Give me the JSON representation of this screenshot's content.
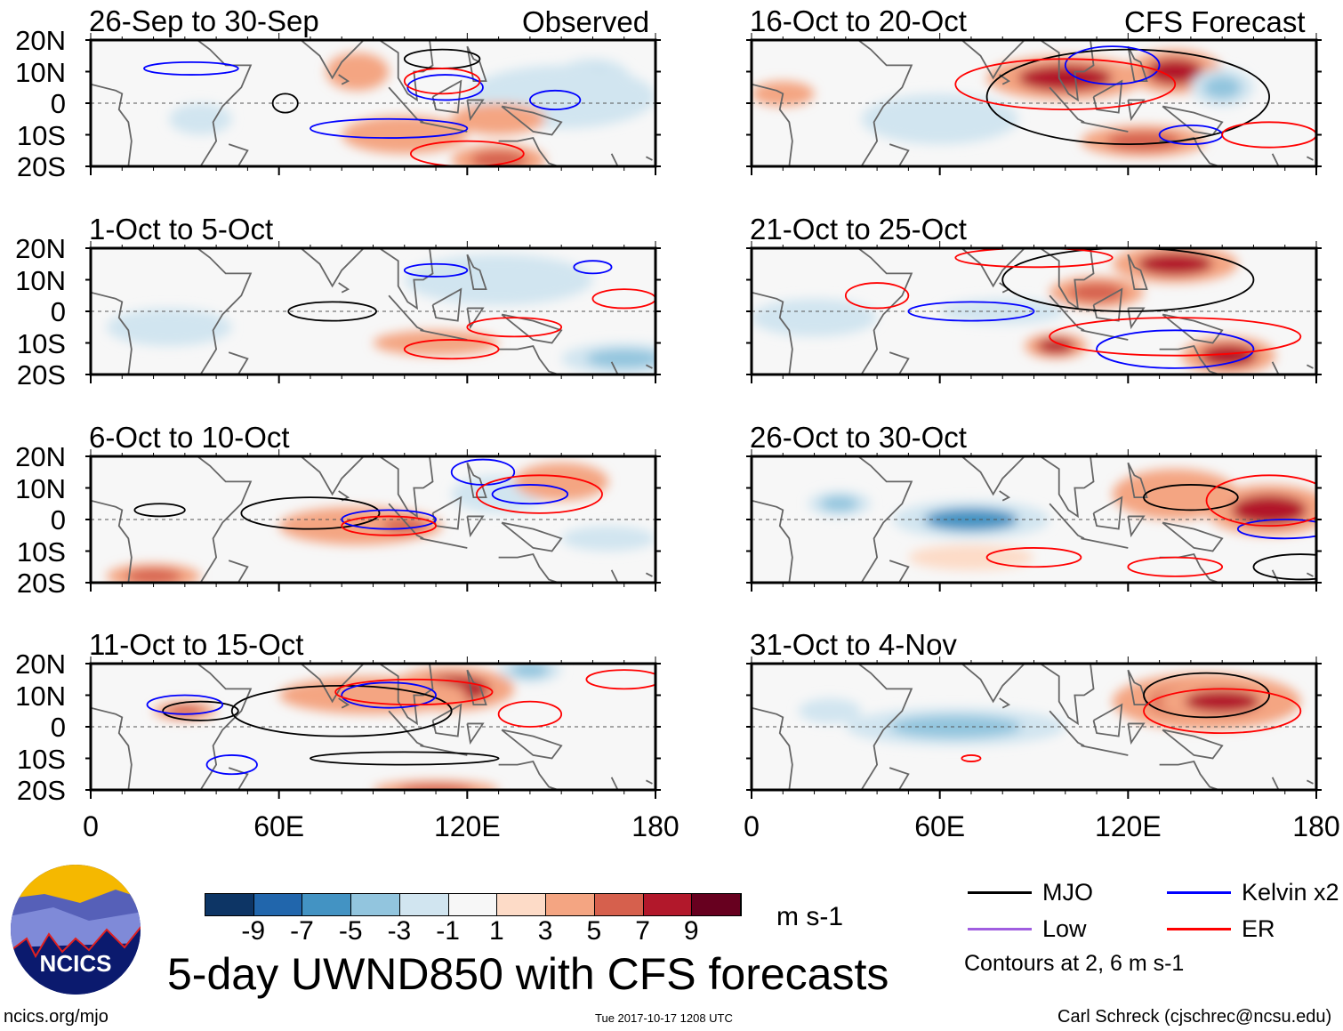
{
  "figure": {
    "title": "5-day UWND850 with CFS forecasts",
    "units": "m s-1",
    "website": "ncics.org/mjo",
    "timestamp": "Tue 2017-10-17 1208 UTC",
    "author": "Carl Schreck (cjschrec@ncsu.edu)",
    "logo_text": "NCICS",
    "left_column_label": "Observed",
    "right_column_label": "CFS Forecast",
    "contour_note": "Contours at 2, 6 m s-1"
  },
  "legend": [
    {
      "label": "MJO",
      "color": "#000000"
    },
    {
      "label": "Kelvin x2",
      "color": "#0000ff"
    },
    {
      "label": "Low",
      "color": "#a05ee0"
    },
    {
      "label": "ER",
      "color": "#ff0000"
    }
  ],
  "colorbar": {
    "labels": [
      "-9",
      "-7",
      "-5",
      "-3",
      "-1",
      "1",
      "3",
      "5",
      "7",
      "9"
    ],
    "colors": [
      "#0d3565",
      "#2166ac",
      "#4393c3",
      "#92c5de",
      "#d1e5f0",
      "#f7f7f7",
      "#fddbc7",
      "#f4a582",
      "#d6604d",
      "#b2182b",
      "#67001f"
    ]
  },
  "axes": {
    "lat_labels": [
      "20N",
      "10N",
      "0",
      "10S",
      "20S"
    ],
    "lon_labels": [
      "0",
      "60E",
      "120E",
      "180"
    ]
  },
  "chart_data": {
    "type": "heatmap",
    "variable": "850 hPa zonal wind anomaly",
    "xlim": [
      0,
      180
    ],
    "ylim": [
      -20,
      20
    ],
    "panels": [
      {
        "title": "26-Sep to 30-Sep",
        "column": "left",
        "anomalies": [
          [
            160,
            8,
            12,
            6,
            -5
          ],
          [
            150,
            2,
            30,
            10,
            -3
          ],
          [
            35,
            -5,
            10,
            5,
            -3
          ],
          [
            100,
            -10,
            20,
            6,
            3
          ],
          [
            130,
            -18,
            15,
            5,
            5
          ],
          [
            85,
            10,
            10,
            6,
            3
          ],
          [
            130,
            -5,
            15,
            5,
            3
          ]
        ],
        "contours": {
          "MJO": [
            [
              62,
              0,
              4,
              3
            ],
            [
              112,
              14,
              12,
              3
            ]
          ],
          "Kelvin": [
            [
              32,
              11,
              15,
              2
            ],
            [
              113,
              5,
              12,
              4
            ],
            [
              148,
              1,
              8,
              3
            ],
            [
              95,
              -8,
              25,
              3
            ]
          ],
          "ER": [
            [
              112,
              7,
              12,
              4
            ],
            [
              120,
              -16,
              18,
              4
            ]
          ]
        }
      },
      {
        "title": "1-Oct to 5-Oct",
        "column": "left",
        "anomalies": [
          [
            170,
            -15,
            20,
            5,
            -5
          ],
          [
            110,
            -10,
            20,
            4,
            3
          ],
          [
            25,
            -5,
            20,
            6,
            -3
          ],
          [
            130,
            10,
            30,
            8,
            -2
          ]
        ],
        "contours": {
          "MJO": [
            [
              77,
              0,
              14,
              3
            ]
          ],
          "Kelvin": [
            [
              110,
              13,
              10,
              2
            ],
            [
              160,
              14,
              6,
              2
            ]
          ],
          "ER": [
            [
              170,
              4,
              10,
              3
            ],
            [
              115,
              -12,
              15,
              3
            ],
            [
              135,
              -5,
              15,
              3
            ]
          ]
        }
      },
      {
        "title": "6-Oct to 10-Oct",
        "column": "left",
        "anomalies": [
          [
            85,
            -2,
            25,
            6,
            3
          ],
          [
            100,
            -2,
            12,
            4,
            5
          ],
          [
            130,
            8,
            15,
            6,
            -3
          ],
          [
            20,
            -18,
            15,
            4,
            5
          ],
          [
            150,
            12,
            15,
            6,
            3
          ],
          [
            165,
            -6,
            15,
            4,
            -3
          ]
        ],
        "contours": {
          "MJO": [
            [
              70,
              2,
              22,
              5
            ],
            [
              22,
              3,
              8,
              2
            ]
          ],
          "Kelvin": [
            [
              95,
              0,
              15,
              3
            ],
            [
              125,
              15,
              10,
              4
            ],
            [
              140,
              8,
              12,
              3
            ]
          ],
          "ER": [
            [
              143,
              8,
              20,
              6
            ],
            [
              95,
              -2,
              15,
              3
            ]
          ]
        }
      },
      {
        "title": "11-Oct to 15-Oct",
        "column": "left",
        "anomalies": [
          [
            115,
            12,
            20,
            7,
            7
          ],
          [
            90,
            10,
            30,
            6,
            3
          ],
          [
            30,
            5,
            10,
            3,
            5
          ],
          [
            140,
            18,
            10,
            4,
            -5
          ],
          [
            110,
            -20,
            20,
            3,
            5
          ]
        ],
        "contours": {
          "MJO": [
            [
              80,
              5,
              35,
              8
            ],
            [
              35,
              5,
              12,
              3
            ],
            [
              100,
              -10,
              30,
              2
            ]
          ],
          "Kelvin": [
            [
              95,
              10,
              15,
              4
            ],
            [
              30,
              7,
              12,
              3
            ],
            [
              45,
              -12,
              8,
              3
            ]
          ],
          "ER": [
            [
              103,
              11,
              25,
              4
            ],
            [
              170,
              15,
              12,
              3
            ],
            [
              140,
              4,
              10,
              4
            ]
          ]
        }
      },
      {
        "title": "16-Oct to 20-Oct",
        "column": "right",
        "anomalies": [
          [
            100,
            8,
            25,
            7,
            7
          ],
          [
            135,
            10,
            15,
            7,
            7
          ],
          [
            125,
            -12,
            20,
            5,
            5
          ],
          [
            150,
            5,
            10,
            6,
            -5
          ],
          [
            10,
            3,
            10,
            4,
            3
          ],
          [
            60,
            -5,
            25,
            8,
            -2
          ]
        ],
        "contours": {
          "MJO": [
            [
              120,
              2,
              45,
              15
            ]
          ],
          "Kelvin": [
            [
              115,
              12,
              15,
              6
            ],
            [
              140,
              -10,
              10,
              3
            ]
          ],
          "ER": [
            [
              100,
              6,
              35,
              8
            ],
            [
              165,
              -10,
              15,
              4
            ]
          ]
        }
      },
      {
        "title": "21-Oct to 25-Oct",
        "column": "right",
        "anomalies": [
          [
            135,
            15,
            20,
            6,
            7
          ],
          [
            110,
            6,
            15,
            5,
            5
          ],
          [
            97,
            -11,
            10,
            4,
            7
          ],
          [
            152,
            -14,
            15,
            6,
            7
          ],
          [
            80,
            0,
            20,
            4,
            -3
          ],
          [
            20,
            -2,
            20,
            6,
            -3
          ]
        ],
        "contours": {
          "MJO": [
            [
              120,
              10,
              40,
              10
            ]
          ],
          "Kelvin": [
            [
              70,
              0,
              20,
              3
            ],
            [
              135,
              -12,
              25,
              6
            ]
          ],
          "ER": [
            [
              90,
              17,
              25,
              3
            ],
            [
              40,
              5,
              10,
              4
            ],
            [
              135,
              -8,
              40,
              6
            ]
          ]
        }
      },
      {
        "title": "26-Oct to 30-Oct",
        "column": "right",
        "anomalies": [
          [
            70,
            0,
            25,
            6,
            -7
          ],
          [
            28,
            5,
            10,
            4,
            -5
          ],
          [
            165,
            3,
            20,
            8,
            7
          ],
          [
            135,
            8,
            20,
            8,
            3
          ],
          [
            70,
            -12,
            20,
            4,
            2
          ]
        ],
        "contours": {
          "MJO": [
            [
              140,
              7,
              15,
              4
            ],
            [
              175,
              -15,
              15,
              4
            ]
          ],
          "Kelvin": [
            [
              170,
              -3,
              15,
              3
            ]
          ],
          "ER": [
            [
              165,
              6,
              20,
              8
            ],
            [
              90,
              -12,
              15,
              3
            ],
            [
              135,
              -15,
              15,
              3
            ]
          ]
        }
      },
      {
        "title": "31-Oct to 4-Nov",
        "column": "right",
        "anomalies": [
          [
            65,
            0,
            35,
            6,
            -5
          ],
          [
            25,
            5,
            10,
            4,
            -3
          ],
          [
            145,
            8,
            30,
            9,
            5
          ],
          [
            150,
            8,
            20,
            6,
            7
          ]
        ],
        "contours": {
          "MJO": [
            [
              145,
              10,
              20,
              7
            ]
          ],
          "ER": [
            [
              150,
              5,
              25,
              7
            ],
            [
              70,
              -10,
              3,
              1
            ]
          ]
        }
      }
    ]
  }
}
